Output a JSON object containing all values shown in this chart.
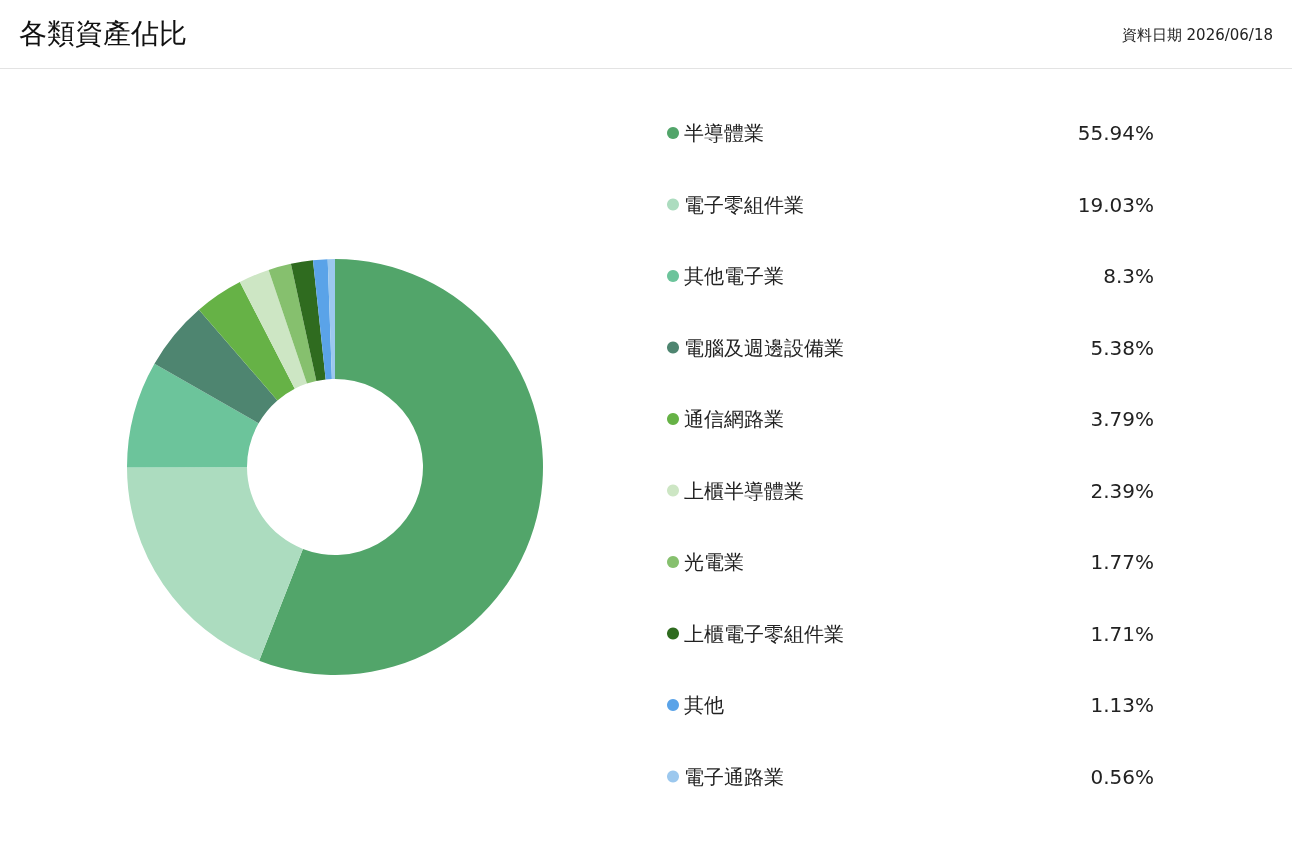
{
  "chart_data": {
    "type": "donut",
    "title": "各類資產佔比",
    "subtitle": "資料日期 2026/06/18",
    "categories": [
      "半導體業",
      "電子零組件業",
      "其他電子業",
      "電腦及週邊設備業",
      "通信網路業",
      "上櫃半導體業",
      "光電業",
      "上櫃電子零組件業",
      "其他",
      "電子通路業"
    ],
    "values": [
      55.94,
      19.03,
      8.3,
      5.38,
      3.79,
      2.39,
      1.77,
      1.71,
      1.13,
      0.56
    ],
    "value_labels": [
      "55.94%",
      "19.03%",
      "8.3%",
      "5.38%",
      "3.79%",
      "2.39%",
      "1.77%",
      "1.71%",
      "1.13%",
      "0.56%"
    ],
    "colors": [
      "#52a56a",
      "#acdcbf",
      "#6cc49b",
      "#4e8570",
      "#66b246",
      "#cde6c4",
      "#86c06e",
      "#2f6b1f",
      "#5aa3e8",
      "#9cc8ee"
    ],
    "legend": "right"
  }
}
